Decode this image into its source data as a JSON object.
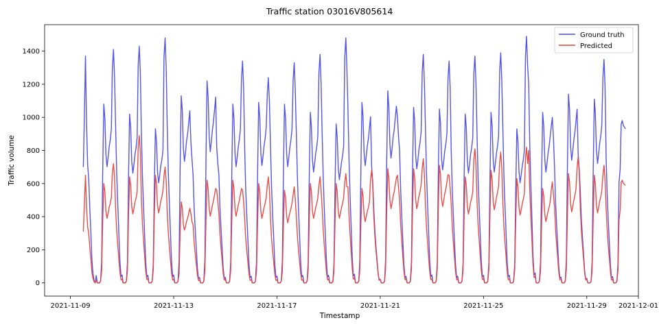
{
  "chart_data": {
    "type": "line",
    "title": "Traffic station 03016V805614",
    "xlabel": "Timestamp",
    "ylabel": "Traffic volume",
    "x_start": "2021-11-09 12:00",
    "x_end": "2021-11-30 12:00",
    "xlim": [
      "2021-11-08 00:00",
      "2021-12-01 00:00"
    ],
    "ylim": [
      -80,
      1560
    ],
    "x_ticks": [
      "2021-11-09",
      "2021-11-13",
      "2021-11-17",
      "2021-11-21",
      "2021-11-25",
      "2021-11-29",
      "2021-12-01"
    ],
    "y_ticks": [
      0,
      200,
      400,
      600,
      800,
      1000,
      1200,
      1400
    ],
    "legend_position": "top-right",
    "series": [
      {
        "name": "Ground truth",
        "color": "#4a4ae8",
        "days": [
          {
            "m": 1370,
            "o": 0,
            "e": 880,
            "v": 700
          },
          {
            "m": 1080,
            "o": 1410,
            "e": 950
          },
          {
            "m": 1020,
            "o": 1430,
            "e": 900
          },
          {
            "m": 930,
            "o": 1480,
            "e": 950
          },
          {
            "m": 1130,
            "o": 850,
            "e": 650
          },
          {
            "m": 1220,
            "o": 820,
            "e": 650
          },
          {
            "m": 1080,
            "o": 1340,
            "e": 800
          },
          {
            "m": 1090,
            "o": 1240,
            "e": 820
          },
          {
            "m": 1080,
            "o": 1330,
            "e": 900
          },
          {
            "m": 1030,
            "o": 1380,
            "e": 900
          },
          {
            "m": 960,
            "o": 1480,
            "e": 1050
          },
          {
            "m": 1090,
            "o": 700,
            "e": 450
          },
          {
            "m": 1160,
            "o": 1000,
            "e": 800
          },
          {
            "m": 1060,
            "o": 1380,
            "e": 950
          },
          {
            "m": 1050,
            "o": 1340,
            "e": 800
          },
          {
            "m": 1020,
            "o": 1370,
            "e": 900
          },
          {
            "m": 1030,
            "o": 1390,
            "e": 920
          },
          {
            "m": 930,
            "o": 1490,
            "e": 1200
          },
          {
            "m": 1030,
            "o": 1000,
            "e": 700
          },
          {
            "m": 1140,
            "o": 780,
            "e": 550
          },
          {
            "m": 1110,
            "o": 1350,
            "e": 750
          },
          {
            "m": 980,
            "o": 0,
            "e": 0
          }
        ]
      },
      {
        "name": "Predicted",
        "color": "#e8413e",
        "days": [
          {
            "m": 650,
            "o": 0,
            "e": 320,
            "v": 310
          },
          {
            "m": 600,
            "o": 720,
            "e": 450
          },
          {
            "m": 640,
            "o": 890,
            "e": 500
          },
          {
            "m": 650,
            "o": 700,
            "e": 430
          },
          {
            "m": 490,
            "o": 420,
            "e": 350
          },
          {
            "m": 620,
            "o": 560,
            "e": 420
          },
          {
            "m": 620,
            "o": 560,
            "e": 380
          },
          {
            "m": 600,
            "o": 640,
            "e": 380
          },
          {
            "m": 560,
            "o": 580,
            "e": 400
          },
          {
            "m": 600,
            "o": 640,
            "e": 450
          },
          {
            "m": 600,
            "o": 660,
            "e": 580
          },
          {
            "m": 570,
            "o": 680,
            "e": 400
          },
          {
            "m": 690,
            "o": 650,
            "e": 500
          },
          {
            "m": 690,
            "o": 750,
            "e": 480
          },
          {
            "m": 710,
            "o": 650,
            "e": 480
          },
          {
            "m": 640,
            "o": 810,
            "e": 500
          },
          {
            "m": 680,
            "o": 790,
            "e": 480
          },
          {
            "m": 630,
            "o": 820,
            "e": 800
          },
          {
            "m": 570,
            "o": 610,
            "e": 460
          },
          {
            "m": 660,
            "o": 760,
            "e": 450
          },
          {
            "m": 650,
            "o": 710,
            "e": 450
          },
          {
            "m": 620,
            "o": 0,
            "e": 0
          }
        ]
      }
    ]
  }
}
